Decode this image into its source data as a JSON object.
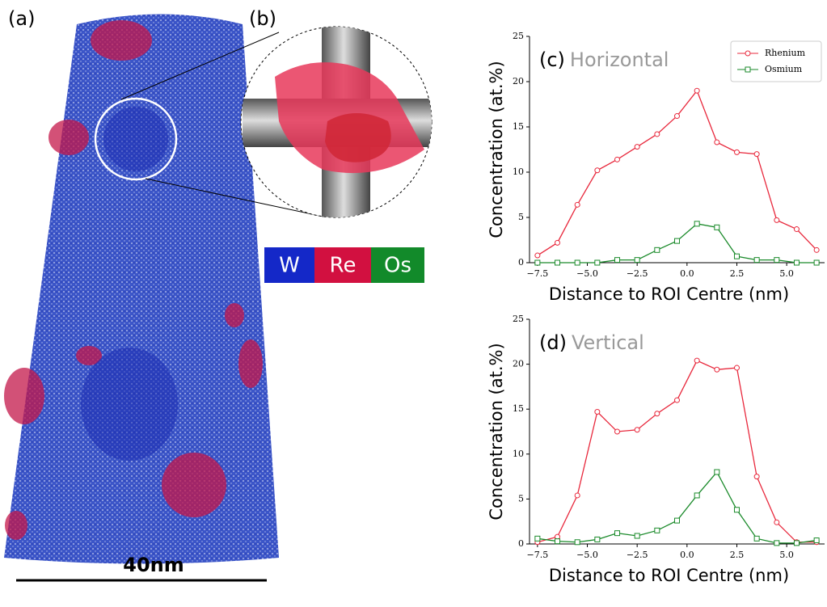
{
  "image": {
    "panel_a": "(a)",
    "panel_b": "(b)",
    "scale_bar": "40nm",
    "elements": [
      "W",
      "Re",
      "Os"
    ]
  },
  "chart_data": [
    {
      "type": "line",
      "panel": "(c)",
      "title": "Horizontal",
      "xlabel": "Distance to ROI Centre (nm)",
      "ylabel": "Concentration (at.%)",
      "x": [
        -7.5,
        -6.5,
        -5.5,
        -4.5,
        -3.5,
        -2.5,
        -1.5,
        -0.5,
        0.5,
        1.5,
        2.5,
        3.5,
        4.5,
        5.5,
        6.5
      ],
      "series": [
        {
          "name": "Rhenium",
          "color": "#e8283c",
          "marker": "circle",
          "values": [
            0.8,
            2.2,
            6.4,
            10.2,
            11.4,
            12.8,
            14.2,
            16.2,
            19.0,
            13.3,
            12.2,
            12.0,
            4.7,
            3.7,
            1.4
          ]
        },
        {
          "name": "Osmium",
          "color": "#1a8a2a",
          "marker": "square",
          "values": [
            0.0,
            0.0,
            0.0,
            0.0,
            0.3,
            0.3,
            1.4,
            2.4,
            4.3,
            3.9,
            0.7,
            0.3,
            0.3,
            0.0,
            0.0
          ]
        }
      ],
      "xlim": [
        -7.9,
        6.9
      ],
      "ylim": [
        0,
        25
      ],
      "xticks": [
        {
          "value": -7.5,
          "label": "−7.5"
        },
        {
          "value": -5.0,
          "label": "−5.0"
        },
        {
          "value": -2.5,
          "label": "−2.5"
        },
        {
          "value": 0.0,
          "label": "0.0"
        },
        {
          "value": 2.5,
          "label": "2.5"
        },
        {
          "value": 5.0,
          "label": "5.0"
        }
      ],
      "yticks": [
        0,
        5,
        10,
        15,
        20,
        25
      ],
      "legend": "upper right"
    },
    {
      "type": "line",
      "panel": "(d)",
      "title": "Vertical",
      "xlabel": "Distance to ROI Centre (nm)",
      "ylabel": "Concentration (at.%)",
      "x": [
        -7.5,
        -6.5,
        -5.5,
        -4.5,
        -3.5,
        -2.5,
        -1.5,
        -0.5,
        0.5,
        1.5,
        2.5,
        3.5,
        4.5,
        5.5,
        6.5
      ],
      "series": [
        {
          "name": "Rhenium",
          "color": "#e8283c",
          "marker": "circle",
          "values": [
            0.2,
            0.8,
            5.4,
            14.7,
            12.5,
            12.7,
            14.5,
            16.0,
            20.4,
            19.4,
            19.6,
            7.5,
            2.4,
            0.2,
            0.2
          ]
        },
        {
          "name": "Osmium",
          "color": "#1a8a2a",
          "marker": "square",
          "values": [
            0.6,
            0.3,
            0.2,
            0.5,
            1.2,
            0.9,
            1.5,
            2.6,
            5.4,
            8.0,
            3.8,
            0.6,
            0.1,
            0.1,
            0.4
          ]
        }
      ],
      "xlim": [
        -7.9,
        6.9
      ],
      "ylim": [
        0,
        25
      ],
      "xticks": [
        {
          "value": -7.5,
          "label": "−7.5"
        },
        {
          "value": -5.0,
          "label": "−5.0"
        },
        {
          "value": -2.5,
          "label": "−2.5"
        },
        {
          "value": 0.0,
          "label": "0.0"
        },
        {
          "value": 2.5,
          "label": "2.5"
        },
        {
          "value": 5.0,
          "label": "5.0"
        }
      ],
      "yticks": [
        0,
        5,
        10,
        15,
        20,
        25
      ]
    }
  ]
}
